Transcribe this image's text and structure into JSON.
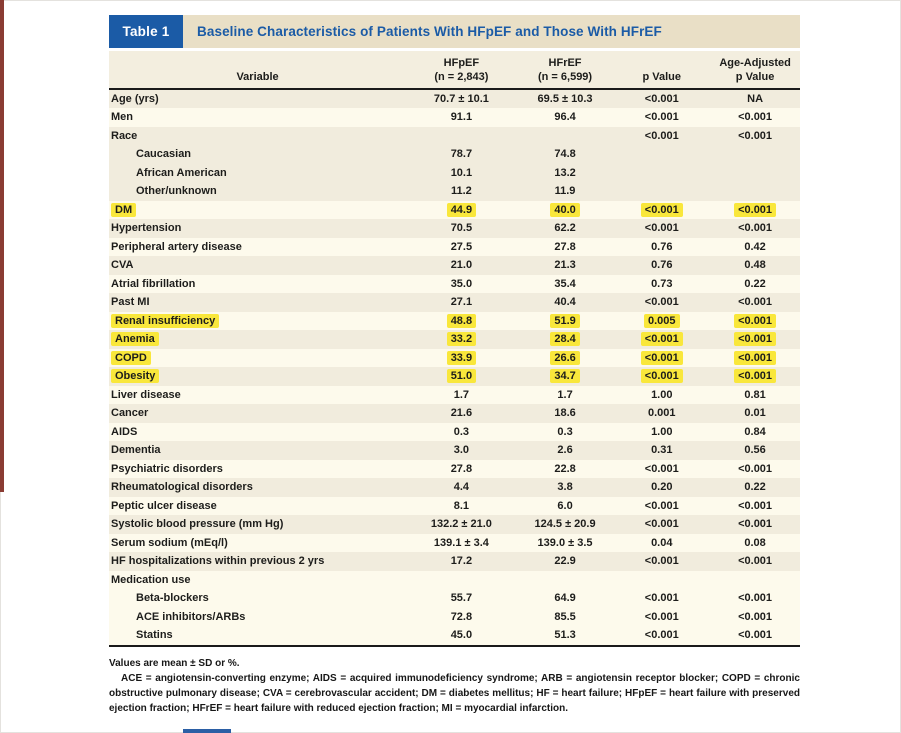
{
  "table": {
    "label": "Table 1",
    "title": "Baseline Characteristics of Patients With HFpEF and Those With HFrEF",
    "header": {
      "variable": "Variable",
      "hfpef_line1": "HFpEF",
      "hfpef_line2": "(n = 2,843)",
      "hfref_line1": "HFrEF",
      "hfref_line2": "(n = 6,599)",
      "p_value": "p Value",
      "adj_line1": "Age-Adjusted",
      "adj_line2": "p Value"
    },
    "colors": {
      "accent_blue": "#1b5ba6",
      "title_bar_bg": "#e9dfc6",
      "header_bg": "#f3eedf",
      "row_beige": "#f1ecdd",
      "row_cream": "#fdfaec",
      "highlight_yellow": "#f9e73b"
    },
    "rows": [
      {
        "label": "Age (yrs)",
        "indent": false,
        "shade": "beige",
        "highlight": false,
        "values": [
          "70.7 ± 10.1",
          "69.5 ± 10.3",
          "<0.001",
          "NA"
        ]
      },
      {
        "label": "Men",
        "indent": false,
        "shade": "cream",
        "highlight": false,
        "values": [
          "91.1",
          "96.4",
          "<0.001",
          "<0.001"
        ]
      },
      {
        "label": "Race",
        "indent": false,
        "shade": "beige",
        "highlight": false,
        "values": [
          "",
          "",
          "<0.001",
          "<0.001"
        ]
      },
      {
        "label": "Caucasian",
        "indent": true,
        "shade": "beige",
        "highlight": false,
        "values": [
          "78.7",
          "74.8",
          "",
          ""
        ]
      },
      {
        "label": "African American",
        "indent": true,
        "shade": "beige",
        "highlight": false,
        "values": [
          "10.1",
          "13.2",
          "",
          ""
        ]
      },
      {
        "label": "Other/unknown",
        "indent": true,
        "shade": "beige",
        "highlight": false,
        "values": [
          "11.2",
          "11.9",
          "",
          ""
        ]
      },
      {
        "label": "DM",
        "indent": false,
        "shade": "cream",
        "highlight": true,
        "values": [
          "44.9",
          "40.0",
          "<0.001",
          "<0.001"
        ]
      },
      {
        "label": "Hypertension",
        "indent": false,
        "shade": "beige",
        "highlight": false,
        "values": [
          "70.5",
          "62.2",
          "<0.001",
          "<0.001"
        ]
      },
      {
        "label": "Peripheral artery disease",
        "indent": false,
        "shade": "cream",
        "highlight": false,
        "values": [
          "27.5",
          "27.8",
          "0.76",
          "0.42"
        ]
      },
      {
        "label": "CVA",
        "indent": false,
        "shade": "beige",
        "highlight": false,
        "values": [
          "21.0",
          "21.3",
          "0.76",
          "0.48"
        ]
      },
      {
        "label": "Atrial fibrillation",
        "indent": false,
        "shade": "cream",
        "highlight": false,
        "values": [
          "35.0",
          "35.4",
          "0.73",
          "0.22"
        ]
      },
      {
        "label": "Past MI",
        "indent": false,
        "shade": "beige",
        "highlight": false,
        "values": [
          "27.1",
          "40.4",
          "<0.001",
          "<0.001"
        ]
      },
      {
        "label": "Renal insufficiency",
        "indent": false,
        "shade": "cream",
        "highlight": true,
        "values": [
          "48.8",
          "51.9",
          "0.005",
          "<0.001"
        ]
      },
      {
        "label": "Anemia",
        "indent": false,
        "shade": "beige",
        "highlight": true,
        "values": [
          "33.2",
          "28.4",
          "<0.001",
          "<0.001"
        ]
      },
      {
        "label": "COPD",
        "indent": false,
        "shade": "cream",
        "highlight": true,
        "values": [
          "33.9",
          "26.6",
          "<0.001",
          "<0.001"
        ]
      },
      {
        "label": "Obesity",
        "indent": false,
        "shade": "beige",
        "highlight": true,
        "values": [
          "51.0",
          "34.7",
          "<0.001",
          "<0.001"
        ]
      },
      {
        "label": "Liver disease",
        "indent": false,
        "shade": "cream",
        "highlight": false,
        "values": [
          "1.7",
          "1.7",
          "1.00",
          "0.81"
        ]
      },
      {
        "label": "Cancer",
        "indent": false,
        "shade": "beige",
        "highlight": false,
        "values": [
          "21.6",
          "18.6",
          "0.001",
          "0.01"
        ]
      },
      {
        "label": "AIDS",
        "indent": false,
        "shade": "cream",
        "highlight": false,
        "values": [
          "0.3",
          "0.3",
          "1.00",
          "0.84"
        ]
      },
      {
        "label": "Dementia",
        "indent": false,
        "shade": "beige",
        "highlight": false,
        "values": [
          "3.0",
          "2.6",
          "0.31",
          "0.56"
        ]
      },
      {
        "label": "Psychiatric disorders",
        "indent": false,
        "shade": "cream",
        "highlight": false,
        "values": [
          "27.8",
          "22.8",
          "<0.001",
          "<0.001"
        ]
      },
      {
        "label": "Rheumatological disorders",
        "indent": false,
        "shade": "beige",
        "highlight": false,
        "values": [
          "4.4",
          "3.8",
          "0.20",
          "0.22"
        ]
      },
      {
        "label": "Peptic ulcer disease",
        "indent": false,
        "shade": "cream",
        "highlight": false,
        "values": [
          "8.1",
          "6.0",
          "<0.001",
          "<0.001"
        ]
      },
      {
        "label": "Systolic blood pressure (mm Hg)",
        "indent": false,
        "shade": "beige",
        "highlight": false,
        "values": [
          "132.2 ± 21.0",
          "124.5 ± 20.9",
          "<0.001",
          "<0.001"
        ]
      },
      {
        "label": "Serum sodium (mEq/l)",
        "indent": false,
        "shade": "cream",
        "highlight": false,
        "values": [
          "139.1 ± 3.4",
          "139.0 ± 3.5",
          "0.04",
          "0.08"
        ]
      },
      {
        "label": "HF hospitalizations within previous 2 yrs",
        "indent": false,
        "shade": "beige",
        "highlight": false,
        "values": [
          "17.2",
          "22.9",
          "<0.001",
          "<0.001"
        ]
      },
      {
        "label": "Medication use",
        "indent": false,
        "shade": "cream",
        "highlight": false,
        "values": [
          "",
          "",
          "",
          ""
        ]
      },
      {
        "label": "Beta-blockers",
        "indent": true,
        "shade": "cream",
        "highlight": false,
        "values": [
          "55.7",
          "64.9",
          "<0.001",
          "<0.001"
        ]
      },
      {
        "label": "ACE inhibitors/ARBs",
        "indent": true,
        "shade": "cream",
        "highlight": false,
        "values": [
          "72.8",
          "85.5",
          "<0.001",
          "<0.001"
        ]
      },
      {
        "label": "Statins",
        "indent": true,
        "shade": "cream",
        "highlight": false,
        "values": [
          "45.0",
          "51.3",
          "<0.001",
          "<0.001"
        ]
      }
    ]
  },
  "footnotes": {
    "line1": "Values are mean ± SD or %.",
    "abbreviations": "ACE = angiotensin-converting enzyme; AIDS = acquired immunodeficiency syndrome; ARB = angiotensin receptor blocker; COPD = chronic obstructive pulmonary disease; CVA = cerebrovascular accident; DM = diabetes mellitus; HF = heart failure; HFpEF = heart failure with preserved ejection fraction; HFrEF = heart failure with reduced ejection fraction; MI = myocardial infarction."
  }
}
